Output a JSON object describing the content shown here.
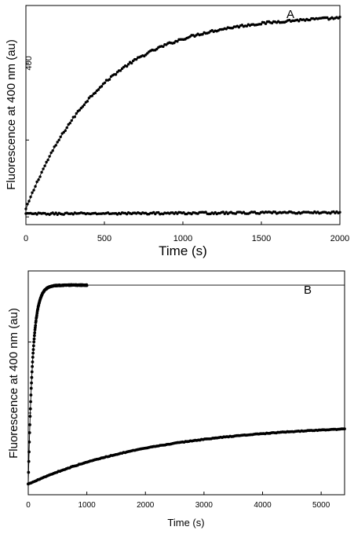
{
  "chart_data": [
    {
      "type": "scatter",
      "panel_label": "A",
      "xlabel": "Time (s)",
      "ylabel": "Fluorescence at 400 nm (au)",
      "xlim": [
        0,
        2000
      ],
      "ylim": [
        -20,
        550
      ],
      "x_ticks": [
        0,
        500,
        1000,
        1500,
        2000
      ],
      "y_ticks": [
        0,
        200,
        400,
        600
      ],
      "y_tick_labels": [
        "",
        "",
        "400",
        ""
      ],
      "series": [
        {
          "model": "exponential_rise",
          "x_range": [
            0,
            2000
          ],
          "n_points": 200,
          "y0": 20,
          "plateau": 525,
          "k": 0.0021,
          "noise": 3,
          "fit_line": true
        },
        {
          "model": "flat",
          "x_range": [
            0,
            2000
          ],
          "n_points": 200,
          "y0": 8,
          "slope": 0.0018,
          "noise": 2.5,
          "fit_line": true
        }
      ]
    },
    {
      "type": "scatter",
      "panel_label": "B",
      "xlabel": "Time (s)",
      "ylabel": "Fluorescence at 400 nm (au)",
      "xlim": [
        0,
        5400
      ],
      "ylim": [
        -15,
        300
      ],
      "x_ticks": [
        0,
        1000,
        2000,
        3000,
        4000,
        5000
      ],
      "y_ticks": [
        0,
        100,
        200
      ],
      "y_tick_labels": [
        "",
        "",
        ""
      ],
      "series": [
        {
          "model": "exponential_rise",
          "x_range": [
            0,
            1000
          ],
          "n_points": 220,
          "y0": 0,
          "plateau": 280,
          "k": 0.013,
          "noise": 0.6,
          "fit_line": true,
          "fit_extend_to": 5400
        },
        {
          "model": "exponential_rise",
          "x_range": [
            0,
            5400
          ],
          "n_points": 200,
          "y0": 0,
          "plateau": 85,
          "k": 0.00045,
          "noise": 0.4,
          "fit_line": true
        }
      ]
    }
  ]
}
